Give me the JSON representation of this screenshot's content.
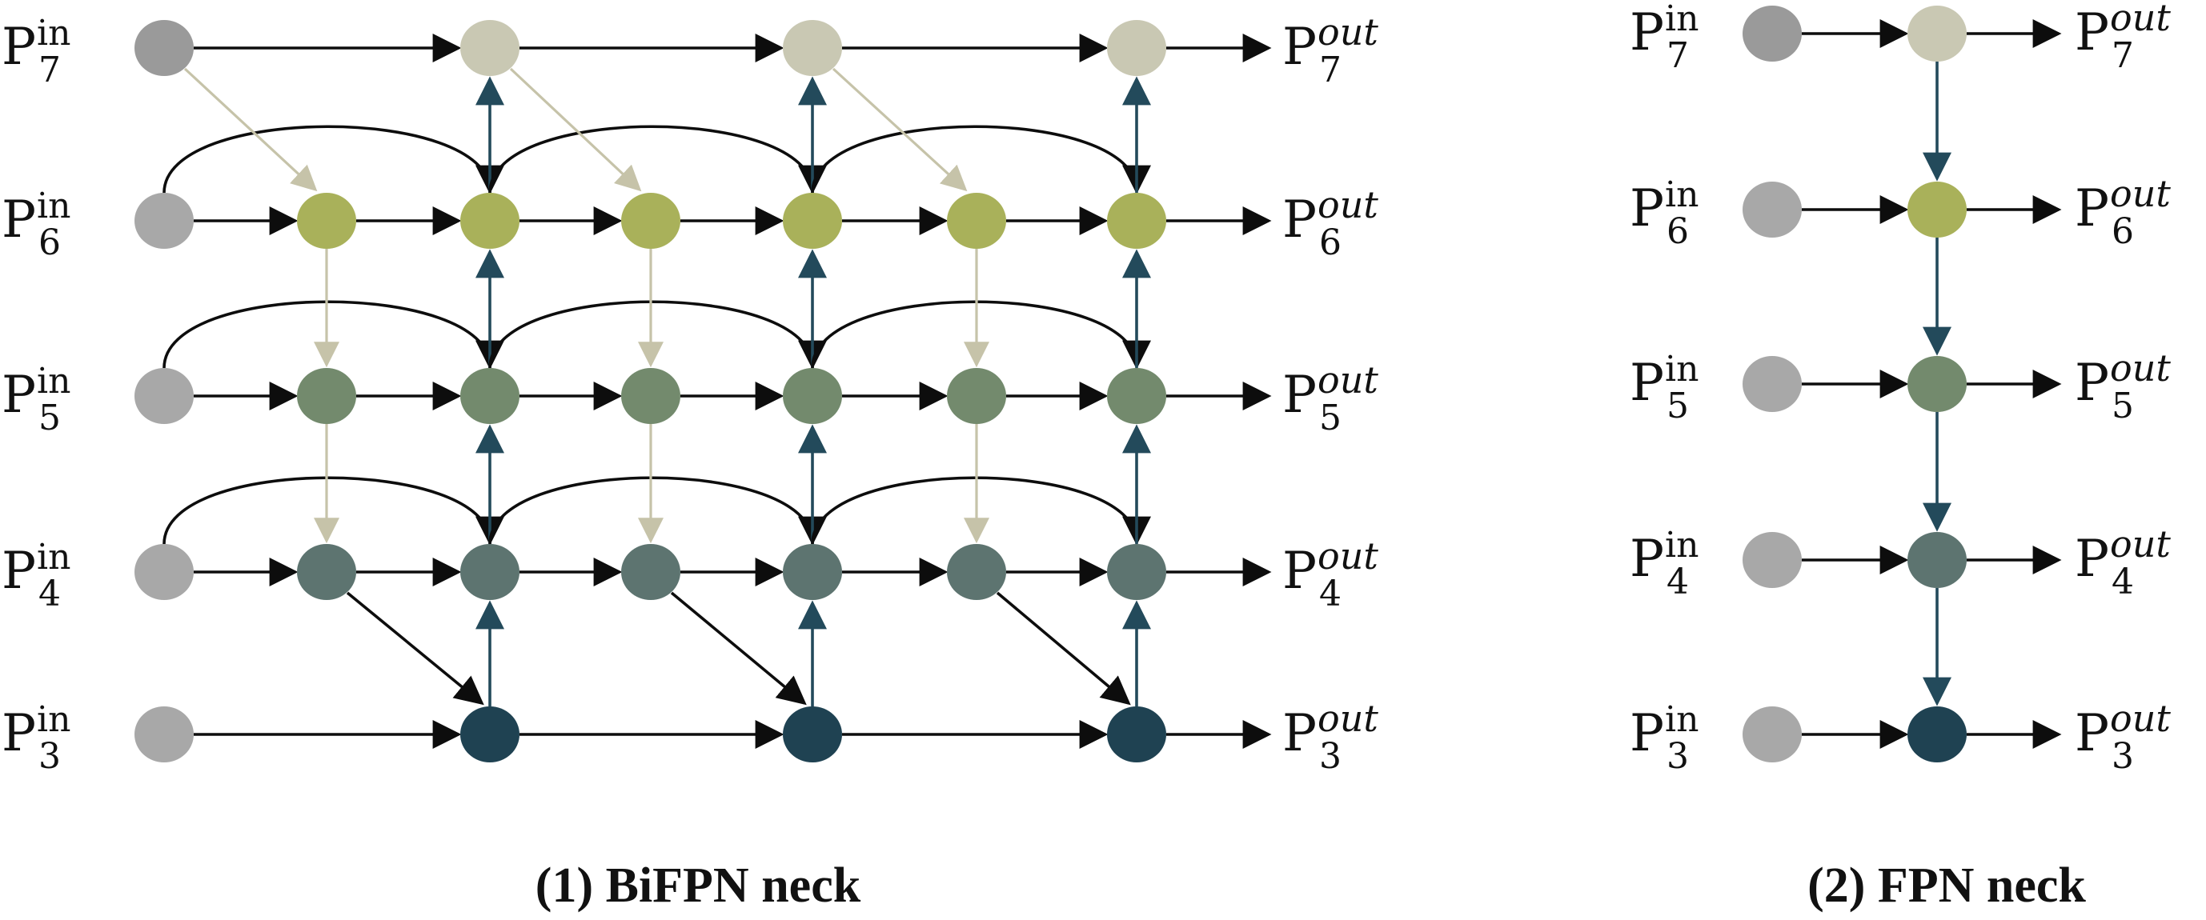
{
  "colors": {
    "input_node": "#a8a8a8",
    "input_node_p7": "#9a9a9a",
    "level7": "#c9c8b3",
    "level6": "#a9b15a",
    "level5": "#738a6d",
    "level4": "#5d7470",
    "level3": "#1f4252",
    "arrow_black": "#0d0d0d",
    "arrow_down_tan": "#c6c3a9",
    "arrow_up_teal": "#234a5b"
  },
  "bifpn": {
    "caption": "(1) BiFPN neck",
    "inputs": [
      {
        "level": "7",
        "base": "P",
        "sup": "in",
        "sub": "7"
      },
      {
        "level": "6",
        "base": "P",
        "sup": "in",
        "sub": "6"
      },
      {
        "level": "5",
        "base": "P",
        "sup": "in",
        "sub": "5"
      },
      {
        "level": "4",
        "base": "P",
        "sup": "in",
        "sub": "4"
      },
      {
        "level": "3",
        "base": "P",
        "sup": "in",
        "sub": "3"
      }
    ],
    "outputs": [
      {
        "level": "7",
        "base": "P",
        "sup": "out",
        "sub": "7"
      },
      {
        "level": "6",
        "base": "P",
        "sup": "out",
        "sub": "6"
      },
      {
        "level": "5",
        "base": "P",
        "sup": "out",
        "sub": "5"
      },
      {
        "level": "4",
        "base": "P",
        "sup": "out",
        "sub": "4"
      },
      {
        "level": "3",
        "base": "P",
        "sup": "out",
        "sub": "3"
      }
    ],
    "repeats": 3
  },
  "fpn": {
    "caption": "(2) FPN neck",
    "inputs": [
      {
        "level": "7",
        "base": "P",
        "sup": "in",
        "sub": "7"
      },
      {
        "level": "6",
        "base": "P",
        "sup": "in",
        "sub": "6"
      },
      {
        "level": "5",
        "base": "P",
        "sup": "in",
        "sub": "5"
      },
      {
        "level": "4",
        "base": "P",
        "sup": "in",
        "sub": "4"
      },
      {
        "level": "3",
        "base": "P",
        "sup": "in",
        "sub": "3"
      }
    ],
    "outputs": [
      {
        "level": "7",
        "base": "P",
        "sup": "out",
        "sub": "7"
      },
      {
        "level": "6",
        "base": "P",
        "sup": "out",
        "sub": "6"
      },
      {
        "level": "5",
        "base": "P",
        "sup": "out",
        "sub": "5"
      },
      {
        "level": "4",
        "base": "P",
        "sup": "out",
        "sub": "4"
      },
      {
        "level": "3",
        "base": "P",
        "sup": "out",
        "sub": "3"
      }
    ]
  }
}
